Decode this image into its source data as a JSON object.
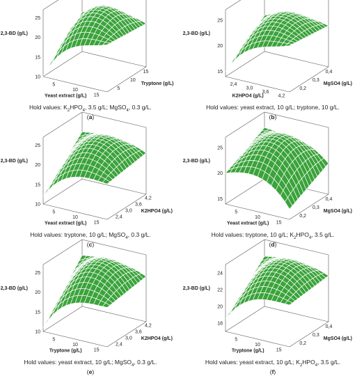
{
  "chart_data": [
    {
      "type": "surface",
      "letter": "a",
      "zlabel": "2,3-BD (g/L)",
      "xlabel": "Yeast extract (g/L)",
      "ylabel": "Tryptone (g/L)",
      "zticks": [
        "25",
        "20",
        "15",
        "10"
      ],
      "xticks": [
        "5",
        "10",
        "15"
      ],
      "yticks": [
        "5",
        "10",
        "15"
      ],
      "zlim": [
        10,
        27
      ],
      "z_low": 10,
      "z_peak": 26,
      "z_far_right": 22,
      "z_far_back": 20,
      "caption_pre": "Hold values: K",
      "caption_mid": "HPO",
      "caption_post": ", 3.5 g/L; MgSO",
      "caption_end": ", 0.3 g/L.",
      "surface_color": "#3aa33a"
    },
    {
      "type": "surface",
      "letter": "b",
      "zlabel": "2,3-BD (g/L)",
      "xlabel": "K2HPO4 (g/L)",
      "ylabel": "MgSO4 (g/L)",
      "zticks": [
        "25",
        "20",
        "15"
      ],
      "xticks": [
        "2,4",
        "3,0",
        "3,6",
        "4,2"
      ],
      "yticks": [
        "0,2",
        "0,3",
        "0,4"
      ],
      "zlim": [
        14,
        27
      ],
      "z_low": 15,
      "z_peak": 25,
      "z_far_right": 23,
      "z_far_back": 21,
      "caption_text": "Hold values: yeast extract, 10 g/L; tryptone, 10 g/L.",
      "surface_color": "#3aa33a"
    },
    {
      "type": "surface",
      "letter": "c",
      "zlabel": "2,3-BD (g/L)",
      "xlabel": "Yeast extract (g/L)",
      "ylabel": "K2HPO4 (g/L)",
      "zticks": [
        "25",
        "20",
        "15",
        "10"
      ],
      "xticks": [
        "5",
        "10",
        "15"
      ],
      "yticks": [
        "2,4",
        "3,0",
        "3,6",
        "4,2"
      ],
      "zlim": [
        10,
        27
      ],
      "z_low": 12,
      "z_peak": 25,
      "z_far_right": 19,
      "z_far_back": 22,
      "caption_pre": "Hold values: tryptone, 10 g/L; MgSO",
      "caption_end": ", 0.3 g/L.",
      "surface_color": "#3aa33a"
    },
    {
      "type": "surface",
      "letter": "d",
      "zlabel": "2,3-BD (g/L)",
      "xlabel": "Yeast extract (g/L)",
      "ylabel": "MgSO4 (g/L)",
      "zticks": [
        "25",
        "20",
        "15"
      ],
      "xticks": [
        "5",
        "10",
        "15"
      ],
      "yticks": [
        "0,2",
        "0,3",
        "0,4"
      ],
      "zlim": [
        14,
        27
      ],
      "z_low": 20,
      "z_peak": 26,
      "z_far_right": 16,
      "z_far_back": 24,
      "caption_pre": "Hold values: tryptone, 10 g/L; K",
      "caption_mid": "HPO",
      "caption_end": ", 3.5 g/L.",
      "surface_color": "#3aa33a"
    },
    {
      "type": "surface",
      "letter": "e",
      "zlabel": "2,3-BD (g/L)",
      "xlabel": "Tryptone (g/L)",
      "ylabel": "K2HPO4 (g/L)",
      "zticks": [
        "25",
        "20",
        "15",
        "10"
      ],
      "xticks": [
        "5",
        "10",
        "15"
      ],
      "yticks": [
        "2,4",
        "3,0",
        "3,6",
        "4,2"
      ],
      "zlim": [
        10,
        27
      ],
      "z_low": 11,
      "z_peak": 26,
      "z_far_right": 20,
      "z_far_back": 23,
      "caption_pre": "Hold values: yeast extract, 10 g/L; MgSO",
      "caption_end": ", 0.3 g/L.",
      "surface_color": "#3aa33a"
    },
    {
      "type": "surface",
      "letter": "f",
      "zlabel": "2,3-BD (g/L)",
      "xlabel": "Tryptone (g/L)",
      "ylabel": "MgSO4 (g/L)",
      "zticks": [
        "24",
        "22",
        "20",
        "18"
      ],
      "xticks": [
        "5",
        "10",
        "15"
      ],
      "yticks": [
        "0,2",
        "0,3",
        "0,4"
      ],
      "zlim": [
        17,
        25
      ],
      "z_low": 18.5,
      "z_peak": 24.5,
      "z_far_right": 22,
      "z_far_back": 23,
      "caption_pre": "Hold values: yeast extract, 10 g/L; K",
      "caption_mid": "HPO",
      "caption_end": ", 3.5 g/L.",
      "surface_color": "#3aa33a"
    }
  ],
  "subscripts": {
    "two": "2",
    "four": "4"
  },
  "letter_open": "(",
  "letter_close": ")"
}
